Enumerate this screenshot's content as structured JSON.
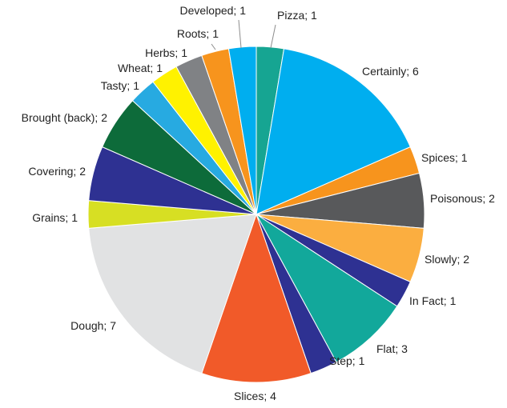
{
  "chart_data": {
    "type": "pie",
    "title": "",
    "slices": [
      {
        "label": "Pizza; 1",
        "category": "Pizza",
        "value": 1,
        "color": "#16a592"
      },
      {
        "label": "Certainly; 6",
        "category": "Certainly",
        "value": 6,
        "color": "#00aeef"
      },
      {
        "label": "Spices; 1",
        "category": "Spices",
        "value": 1,
        "color": "#f7941d"
      },
      {
        "label": "Poisonous; 2",
        "category": "Poisonous",
        "value": 2,
        "color": "#58595b"
      },
      {
        "label": "Slowly; 2",
        "category": "Slowly",
        "value": 2,
        "color": "#fbae40"
      },
      {
        "label": "In Fact; 1",
        "category": "In Fact",
        "value": 1,
        "color": "#2e3192"
      },
      {
        "label": "Flat; 3",
        "category": "Flat",
        "value": 3,
        "color": "#12a89b"
      },
      {
        "label": "Step; 1",
        "category": "Step",
        "value": 1,
        "color": "#2e3192"
      },
      {
        "label": "Slices; 4",
        "category": "Slices",
        "value": 4,
        "color": "#f15a29"
      },
      {
        "label": "Dough; 7",
        "category": "Dough",
        "value": 7,
        "color": "#e1e2e3"
      },
      {
        "label": "Grains; 1",
        "category": "Grains",
        "value": 1,
        "color": "#d7df23"
      },
      {
        "label": "Covering; 2",
        "category": "Covering",
        "value": 2,
        "color": "#2e3192"
      },
      {
        "label": "Brought (back); 2",
        "category": "Brought (back)",
        "value": 2,
        "color": "#0d6b3a"
      },
      {
        "label": "Tasty; 1",
        "category": "Tasty",
        "value": 1,
        "color": "#27aae1"
      },
      {
        "label": "Wheat; 1",
        "category": "Wheat",
        "value": 1,
        "color": "#fff200"
      },
      {
        "label": "Herbs; 1",
        "category": "Herbs",
        "value": 1,
        "color": "#808285"
      },
      {
        "label": "Roots; 1",
        "category": "Roots",
        "value": 1,
        "color": "#f7941d"
      },
      {
        "label": "Developed; 1",
        "category": "Developed",
        "value": 1,
        "color": "#00aeef"
      }
    ]
  }
}
